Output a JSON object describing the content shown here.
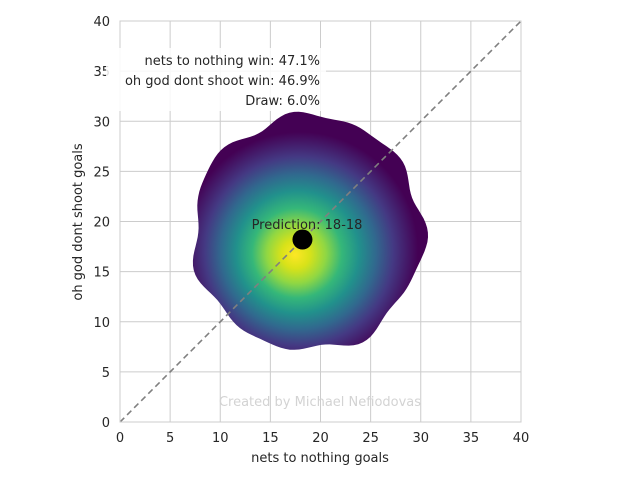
{
  "chart_data": {
    "type": "heatmap",
    "xlabel": "nets to nothing goals",
    "ylabel": "oh god dont shoot goals",
    "xlim": [
      0,
      40
    ],
    "ylim": [
      0,
      40
    ],
    "xticks": [
      0,
      5,
      10,
      15,
      20,
      25,
      30,
      35,
      40
    ],
    "yticks": [
      0,
      5,
      10,
      15,
      20,
      25,
      30,
      35,
      40
    ],
    "grid": true,
    "colormap": "viridis",
    "density_center": [
      18,
      17.5
    ],
    "density_extent": {
      "x": [
        7.3,
        30.2
      ],
      "y": [
        7.2,
        30.6
      ]
    },
    "diagonal_line": {
      "from": [
        0,
        0
      ],
      "to": [
        40,
        40
      ],
      "style": "dashed",
      "color": "#808080"
    },
    "prediction_point": {
      "x": 18.2,
      "y": 18.2,
      "color": "#000000",
      "label": "Prediction: 18-18"
    },
    "summary": {
      "win_a": "nets to nothing win: 47.1%",
      "win_b": "oh god dont shoot win: 46.9%",
      "draw": "Draw: 6.0%"
    },
    "watermark": "Created by Michael Nefiodovas"
  }
}
